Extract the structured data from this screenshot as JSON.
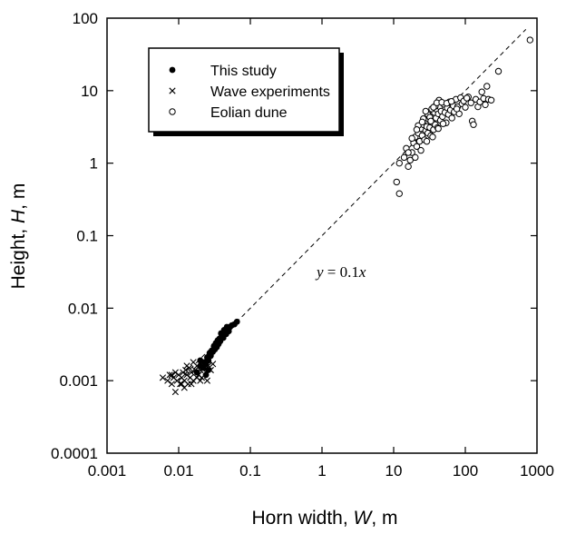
{
  "chart_data": {
    "type": "scatter",
    "x_scale": "log",
    "y_scale": "log",
    "xlim": [
      0.001,
      1000
    ],
    "ylim": [
      0.0001,
      100
    ],
    "x_ticks": [
      "0.001",
      "0.01",
      "0.1",
      "1",
      "10",
      "100",
      "1000"
    ],
    "y_ticks": [
      "0.0001",
      "0.001",
      "0.01",
      "0.1",
      "1",
      "10",
      "100"
    ],
    "xlabel": {
      "prefix": "Horn width, ",
      "var": "W",
      "suffix": ", m"
    },
    "ylabel": {
      "prefix": "Height, ",
      "var": "H",
      "suffix": ", m"
    },
    "grid": false,
    "legend_position": "top-left",
    "annotation": {
      "lhs": "y",
      "op": "=",
      "rhs": "0.1",
      "var": "x"
    },
    "fit_line": {
      "slope_coefficient": 0.1,
      "style": "dashed",
      "x_range": [
        0.01,
        700
      ]
    },
    "series": [
      {
        "name": "This study",
        "marker": "filled-circle",
        "points": [
          [
            0.018,
            0.0013
          ],
          [
            0.02,
            0.0016
          ],
          [
            0.022,
            0.0015
          ],
          [
            0.023,
            0.0018
          ],
          [
            0.024,
            0.0017
          ],
          [
            0.025,
            0.0021
          ],
          [
            0.026,
            0.0019
          ],
          [
            0.027,
            0.0024
          ],
          [
            0.028,
            0.0022
          ],
          [
            0.029,
            0.0026
          ],
          [
            0.03,
            0.0025
          ],
          [
            0.031,
            0.003
          ],
          [
            0.032,
            0.0027
          ],
          [
            0.033,
            0.0033
          ],
          [
            0.034,
            0.0029
          ],
          [
            0.035,
            0.0036
          ],
          [
            0.036,
            0.0032
          ],
          [
            0.037,
            0.0038
          ],
          [
            0.038,
            0.0035
          ],
          [
            0.04,
            0.0042
          ],
          [
            0.042,
            0.0039
          ],
          [
            0.044,
            0.0046
          ],
          [
            0.046,
            0.0044
          ],
          [
            0.048,
            0.0051
          ],
          [
            0.05,
            0.0048
          ],
          [
            0.052,
            0.0055
          ],
          [
            0.055,
            0.0058
          ],
          [
            0.06,
            0.006
          ],
          [
            0.065,
            0.0065
          ],
          [
            0.039,
            0.0045
          ],
          [
            0.043,
            0.005
          ],
          [
            0.047,
            0.0055
          ],
          [
            0.024,
            0.0012
          ],
          [
            0.026,
            0.0014
          ],
          [
            0.02,
            0.0019
          ]
        ]
      },
      {
        "name": "Wave experiments",
        "marker": "cross",
        "points": [
          [
            0.006,
            0.0011
          ],
          [
            0.007,
            0.001
          ],
          [
            0.0075,
            0.0012
          ],
          [
            0.008,
            0.0009
          ],
          [
            0.0085,
            0.0011
          ],
          [
            0.009,
            0.0007
          ],
          [
            0.0095,
            0.001
          ],
          [
            0.01,
            0.0012
          ],
          [
            0.0105,
            0.0009
          ],
          [
            0.011,
            0.0011
          ],
          [
            0.0115,
            0.0013
          ],
          [
            0.012,
            0.001
          ],
          [
            0.0125,
            0.0014
          ],
          [
            0.013,
            0.0012
          ],
          [
            0.0135,
            0.0009
          ],
          [
            0.014,
            0.0015
          ],
          [
            0.0145,
            0.0011
          ],
          [
            0.015,
            0.0013
          ],
          [
            0.016,
            0.001
          ],
          [
            0.017,
            0.0014
          ],
          [
            0.018,
            0.0016
          ],
          [
            0.019,
            0.0012
          ],
          [
            0.02,
            0.0014
          ],
          [
            0.021,
            0.0011
          ],
          [
            0.022,
            0.0015
          ],
          [
            0.024,
            0.0013
          ],
          [
            0.026,
            0.0016
          ],
          [
            0.028,
            0.0014
          ],
          [
            0.03,
            0.0017
          ],
          [
            0.02,
            0.001
          ],
          [
            0.011,
            0.0009
          ],
          [
            0.009,
            0.0013
          ],
          [
            0.008,
            0.0012
          ],
          [
            0.013,
            0.0016
          ],
          [
            0.016,
            0.0018
          ],
          [
            0.015,
            0.0009
          ],
          [
            0.018,
            0.0011
          ],
          [
            0.012,
            0.0008
          ],
          [
            0.025,
            0.001
          ]
        ]
      },
      {
        "name": "Eolian dune",
        "marker": "open-circle",
        "points": [
          [
            11,
            0.55
          ],
          [
            12,
            0.38
          ],
          [
            12,
            1.0
          ],
          [
            14,
            1.2
          ],
          [
            15,
            1.6
          ],
          [
            16,
            0.9
          ],
          [
            17,
            1.1
          ],
          [
            18,
            1.4
          ],
          [
            19,
            1.9
          ],
          [
            20,
            2.3
          ],
          [
            20,
            1.2
          ],
          [
            21,
            1.7
          ],
          [
            22,
            2.6
          ],
          [
            23,
            2.0
          ],
          [
            24,
            3.0
          ],
          [
            24,
            1.5
          ],
          [
            25,
            2.4
          ],
          [
            26,
            3.4
          ],
          [
            27,
            2.1
          ],
          [
            28,
            2.8
          ],
          [
            29,
            3.2
          ],
          [
            30,
            2.6
          ],
          [
            31,
            4.0
          ],
          [
            32,
            3.1
          ],
          [
            33,
            2.4
          ],
          [
            34,
            4.6
          ],
          [
            35,
            3.6
          ],
          [
            36,
            2.9
          ],
          [
            37,
            5.0
          ],
          [
            38,
            3.4
          ],
          [
            39,
            4.2
          ],
          [
            40,
            5.5
          ],
          [
            41,
            3.1
          ],
          [
            42,
            4.8
          ],
          [
            44,
            6.0
          ],
          [
            45,
            3.9
          ],
          [
            46,
            5.2
          ],
          [
            48,
            4.4
          ],
          [
            50,
            6.5
          ],
          [
            52,
            5.0
          ],
          [
            54,
            3.6
          ],
          [
            56,
            5.8
          ],
          [
            58,
            4.7
          ],
          [
            60,
            7.0
          ],
          [
            62,
            5.4
          ],
          [
            65,
            4.2
          ],
          [
            68,
            6.2
          ],
          [
            70,
            5.1
          ],
          [
            74,
            7.6
          ],
          [
            78,
            6.0
          ],
          [
            82,
            4.8
          ],
          [
            86,
            8.0
          ],
          [
            90,
            6.6
          ],
          [
            95,
            7.2
          ],
          [
            100,
            5.9
          ],
          [
            110,
            8.2
          ],
          [
            120,
            6.8
          ],
          [
            125,
            3.8
          ],
          [
            130,
            3.4
          ],
          [
            140,
            7.6
          ],
          [
            150,
            6.0
          ],
          [
            160,
            7.0
          ],
          [
            170,
            9.6
          ],
          [
            180,
            7.8
          ],
          [
            190,
            6.4
          ],
          [
            200,
            11.5
          ],
          [
            210,
            7.6
          ],
          [
            230,
            7.4
          ],
          [
            290,
            18.5
          ],
          [
            800,
            50
          ],
          [
            22,
            3.3
          ],
          [
            26,
            4.1
          ],
          [
            30,
            4.7
          ],
          [
            34,
            5.6
          ],
          [
            38,
            6.1
          ],
          [
            43,
            7.4
          ],
          [
            28,
            5.2
          ],
          [
            32,
            4.3
          ],
          [
            36,
            5.9
          ],
          [
            40,
            6.8
          ],
          [
            18,
            2.2
          ],
          [
            25,
            3.7
          ],
          [
            47,
            6.9
          ],
          [
            55,
            6.7
          ],
          [
            64,
            7.1
          ],
          [
            76,
            5.6
          ],
          [
            105,
            7.9
          ],
          [
            16,
            1.4
          ],
          [
            21,
            2.9
          ],
          [
            33,
            3.8
          ],
          [
            29,
            2.0
          ],
          [
            35,
            2.3
          ],
          [
            42,
            3.0
          ],
          [
            49,
            3.5
          ]
        ]
      }
    ]
  }
}
